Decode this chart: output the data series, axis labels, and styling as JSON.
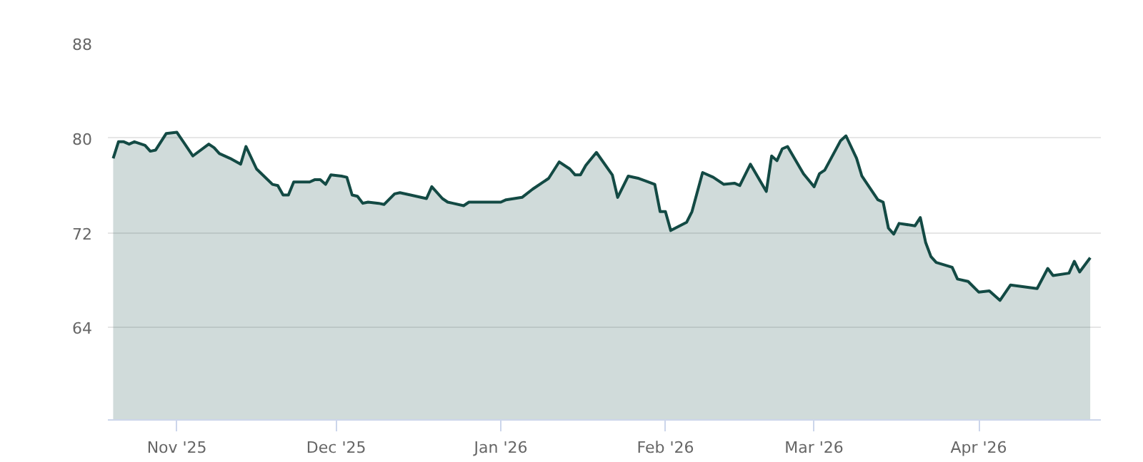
{
  "chart_data": {
    "type": "area",
    "x": [
      "2025-10-20",
      "2025-10-21",
      "2025-10-22",
      "2025-10-23",
      "2025-10-24",
      "2025-10-26",
      "2025-10-27",
      "2025-10-28",
      "2025-10-30",
      "2025-11-01",
      "2025-11-04",
      "2025-11-07",
      "2025-11-08",
      "2025-11-09",
      "2025-11-11",
      "2025-11-13",
      "2025-11-14",
      "2025-11-16",
      "2025-11-19",
      "2025-11-20",
      "2025-11-21",
      "2025-11-22",
      "2025-11-23",
      "2025-11-26",
      "2025-11-27",
      "2025-11-28",
      "2025-11-29",
      "2025-11-30",
      "2025-12-02",
      "2025-12-03",
      "2025-12-04",
      "2025-12-05",
      "2025-12-06",
      "2025-12-07",
      "2025-12-09",
      "2025-12-10",
      "2025-12-12",
      "2025-12-13",
      "2025-12-15",
      "2025-12-18",
      "2025-12-19",
      "2025-12-21",
      "2025-12-22",
      "2025-12-23",
      "2025-12-25",
      "2025-12-26",
      "2026-01-01",
      "2026-01-02",
      "2026-01-05",
      "2026-01-07",
      "2026-01-10",
      "2026-01-12",
      "2026-01-14",
      "2026-01-15",
      "2026-01-16",
      "2026-01-17",
      "2026-01-19",
      "2026-01-22",
      "2026-01-23",
      "2026-01-25",
      "2026-01-27",
      "2026-01-30",
      "2026-01-31",
      "2026-02-01",
      "2026-02-02",
      "2026-02-05",
      "2026-02-06",
      "2026-02-08",
      "2026-02-10",
      "2026-02-12",
      "2026-02-14",
      "2026-02-15",
      "2026-02-17",
      "2026-02-20",
      "2026-02-21",
      "2026-02-22",
      "2026-02-23",
      "2026-02-24",
      "2026-02-27",
      "2026-03-01",
      "2026-03-02",
      "2026-03-03",
      "2026-03-06",
      "2026-03-07",
      "2026-03-09",
      "2026-03-10",
      "2026-03-13",
      "2026-03-14",
      "2026-03-15",
      "2026-03-16",
      "2026-03-17",
      "2026-03-20",
      "2026-03-21",
      "2026-03-22",
      "2026-03-23",
      "2026-03-24",
      "2026-03-27",
      "2026-03-28",
      "2026-03-30",
      "2026-04-01",
      "2026-04-03",
      "2026-04-05",
      "2026-04-07",
      "2026-04-12",
      "2026-04-14",
      "2026-04-15",
      "2026-04-18",
      "2026-04-19",
      "2026-04-20",
      "2026-04-22"
    ],
    "series": [
      {
        "color": "#134a44",
        "values": [
          78.3,
          79.7,
          79.7,
          79.5,
          79.7,
          79.4,
          78.9,
          79.0,
          80.4,
          80.5,
          78.5,
          79.5,
          79.2,
          78.7,
          78.3,
          77.8,
          79.3,
          77.4,
          76.1,
          76.0,
          75.2,
          75.2,
          76.3,
          76.3,
          76.5,
          76.5,
          76.1,
          76.9,
          76.8,
          76.7,
          75.2,
          75.1,
          74.5,
          74.6,
          74.5,
          74.4,
          75.3,
          75.4,
          75.2,
          74.9,
          75.9,
          74.9,
          74.6,
          74.5,
          74.3,
          74.6,
          74.6,
          74.8,
          75.0,
          75.7,
          76.6,
          78.0,
          77.4,
          76.9,
          76.9,
          77.7,
          78.8,
          76.9,
          75.0,
          76.8,
          76.6,
          76.1,
          73.8,
          73.8,
          72.2,
          72.9,
          73.8,
          77.1,
          76.7,
          76.1,
          76.2,
          76.0,
          77.8,
          75.5,
          78.5,
          78.1,
          79.1,
          79.3,
          77.0,
          75.9,
          77.0,
          77.3,
          79.8,
          80.2,
          78.3,
          76.8,
          74.8,
          74.6,
          72.4,
          71.9,
          72.8,
          72.6,
          73.3,
          71.2,
          70.0,
          69.5,
          69.1,
          68.1,
          67.9,
          67.0,
          67.1,
          66.3,
          67.6,
          67.3,
          69.0,
          68.4,
          68.6,
          69.6,
          68.7,
          69.9
        ]
      }
    ],
    "xlim": [
      "2025-10-19",
      "2026-04-24"
    ],
    "xticks": [
      {
        "value": "2025-11-01",
        "label": "Nov '25"
      },
      {
        "value": "2025-12-01",
        "label": "Dec '25"
      },
      {
        "value": "2026-01-01",
        "label": "Jan '26"
      },
      {
        "value": "2026-02-01",
        "label": "Feb '26"
      },
      {
        "value": "2026-03-01",
        "label": "Mar '26"
      },
      {
        "value": "2026-04-01",
        "label": "Apr '26"
      }
    ],
    "ylim": [
      56.2,
      88
    ],
    "yticks": [
      64,
      72,
      80,
      88
    ],
    "grid": "y",
    "line_style": "solid"
  }
}
